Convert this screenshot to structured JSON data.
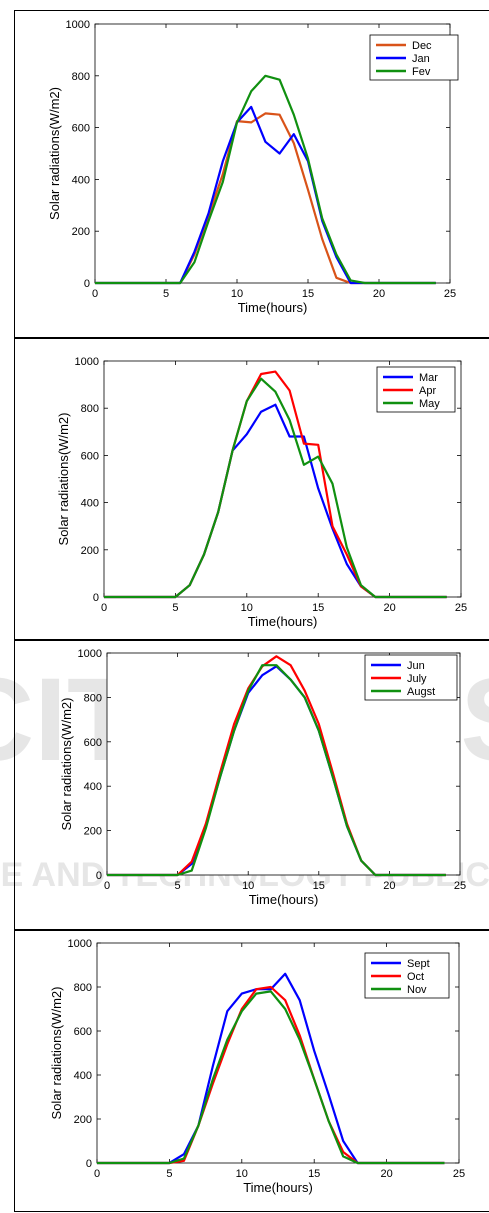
{
  "watermark": {
    "big": "SCITEPRESS",
    "small": "SCIENCE AND TECHNOLOGY PUBLICATIONS",
    "color": "#e6e6e6"
  },
  "chart_data": [
    {
      "type": "line",
      "xlabel": "Time(hours)",
      "ylabel": "Solar radiations(W/m2)",
      "xlim": [
        0,
        25
      ],
      "ylim": [
        0,
        1000
      ],
      "xticks": [
        0,
        5,
        10,
        15,
        20,
        25
      ],
      "yticks": [
        0,
        200,
        400,
        600,
        800,
        1000
      ],
      "legend": "top-right",
      "x": [
        0,
        1,
        2,
        3,
        4,
        5,
        6,
        7,
        8,
        9,
        10,
        11,
        12,
        13,
        14,
        15,
        16,
        17,
        18,
        19,
        20,
        21,
        22,
        23,
        24
      ],
      "series": [
        {
          "name": "Dec",
          "color": "#d95319",
          "values": [
            0,
            0,
            0,
            0,
            0,
            0,
            0,
            110,
            260,
            420,
            625,
            620,
            655,
            650,
            540,
            360,
            170,
            20,
            0,
            0,
            0,
            0,
            0,
            0,
            0
          ]
        },
        {
          "name": "Jan",
          "color": "#0000ff",
          "values": [
            0,
            0,
            0,
            0,
            0,
            0,
            0,
            120,
            270,
            470,
            620,
            680,
            545,
            500,
            575,
            470,
            240,
            100,
            0,
            0,
            0,
            0,
            0,
            0,
            0
          ]
        },
        {
          "name": "Fev",
          "color": "#109010",
          "values": [
            0,
            0,
            0,
            0,
            0,
            0,
            0,
            80,
            240,
            390,
            620,
            740,
            800,
            785,
            650,
            480,
            250,
            110,
            10,
            0,
            0,
            0,
            0,
            0,
            0
          ]
        }
      ]
    },
    {
      "type": "line",
      "xlabel": "Time(hours)",
      "ylabel": "Solar radiations(W/m2)",
      "xlim": [
        0,
        25
      ],
      "ylim": [
        0,
        1000
      ],
      "xticks": [
        0,
        5,
        10,
        15,
        20,
        25
      ],
      "yticks": [
        0,
        200,
        400,
        600,
        800,
        1000
      ],
      "legend": "top-right",
      "x": [
        0,
        1,
        2,
        3,
        4,
        5,
        6,
        7,
        8,
        9,
        10,
        11,
        12,
        13,
        14,
        15,
        16,
        17,
        18,
        19,
        20,
        21,
        22,
        23,
        24
      ],
      "series": [
        {
          "name": "Mar",
          "color": "#0000ff",
          "values": [
            0,
            0,
            0,
            0,
            0,
            0,
            50,
            180,
            360,
            620,
            690,
            785,
            815,
            680,
            680,
            460,
            290,
            140,
            45,
            0,
            0,
            0,
            0,
            0,
            0
          ]
        },
        {
          "name": "Apr",
          "color": "#ff0000",
          "values": [
            0,
            0,
            0,
            0,
            0,
            0,
            50,
            180,
            360,
            620,
            830,
            945,
            955,
            875,
            650,
            645,
            300,
            180,
            45,
            0,
            0,
            0,
            0,
            0,
            0
          ]
        },
        {
          "name": "May",
          "color": "#109010",
          "values": [
            0,
            0,
            0,
            0,
            0,
            0,
            50,
            180,
            360,
            620,
            830,
            925,
            870,
            750,
            560,
            595,
            480,
            210,
            50,
            0,
            0,
            0,
            0,
            0,
            0
          ]
        }
      ]
    },
    {
      "type": "line",
      "xlabel": "Time(hours)",
      "ylabel": "Solar radiations(W/m2)",
      "xlim": [
        0,
        25
      ],
      "ylim": [
        0,
        1000
      ],
      "xticks": [
        0,
        5,
        10,
        15,
        20,
        25
      ],
      "yticks": [
        0,
        200,
        400,
        600,
        800,
        1000
      ],
      "legend": "top-right",
      "x": [
        0,
        1,
        2,
        3,
        4,
        5,
        6,
        7,
        8,
        9,
        10,
        11,
        12,
        13,
        14,
        15,
        16,
        17,
        18,
        19,
        20,
        21,
        22,
        23,
        24
      ],
      "series": [
        {
          "name": "Jun",
          "color": "#0000ff",
          "values": [
            0,
            0,
            0,
            0,
            0,
            0,
            50,
            220,
            440,
            650,
            820,
            900,
            940,
            880,
            800,
            650,
            440,
            220,
            65,
            0,
            0,
            0,
            0,
            0,
            0
          ]
        },
        {
          "name": "July",
          "color": "#ff0000",
          "values": [
            0,
            0,
            0,
            0,
            0,
            0,
            60,
            230,
            460,
            680,
            840,
            940,
            985,
            945,
            830,
            680,
            460,
            230,
            65,
            0,
            0,
            0,
            0,
            0,
            0
          ]
        },
        {
          "name": "Augst",
          "color": "#109010",
          "values": [
            0,
            0,
            0,
            0,
            0,
            0,
            20,
            210,
            440,
            650,
            830,
            945,
            945,
            880,
            800,
            650,
            440,
            220,
            65,
            0,
            0,
            0,
            0,
            0,
            0
          ]
        }
      ]
    },
    {
      "type": "line",
      "xlabel": "Time(hours)",
      "ylabel": "Solar radiations(W/m2)",
      "xlim": [
        0,
        25
      ],
      "ylim": [
        0,
        1000
      ],
      "xticks": [
        0,
        5,
        10,
        15,
        20,
        25
      ],
      "yticks": [
        0,
        200,
        400,
        600,
        800,
        1000
      ],
      "legend": "top-right",
      "x": [
        0,
        1,
        2,
        3,
        4,
        5,
        6,
        7,
        8,
        9,
        10,
        11,
        12,
        13,
        14,
        15,
        16,
        17,
        18,
        19,
        20,
        21,
        22,
        23,
        24
      ],
      "series": [
        {
          "name": "Sept",
          "color": "#0000ff",
          "values": [
            0,
            0,
            0,
            0,
            0,
            0,
            40,
            170,
            440,
            690,
            770,
            790,
            790,
            860,
            740,
            510,
            310,
            100,
            0,
            0,
            0,
            0,
            0,
            0,
            0
          ]
        },
        {
          "name": "Oct",
          "color": "#ff0000",
          "values": [
            0,
            0,
            0,
            0,
            0,
            0,
            10,
            170,
            360,
            540,
            700,
            790,
            800,
            740,
            580,
            380,
            190,
            50,
            0,
            0,
            0,
            0,
            0,
            0,
            0
          ]
        },
        {
          "name": "Nov",
          "color": "#109010",
          "values": [
            0,
            0,
            0,
            0,
            0,
            0,
            20,
            170,
            380,
            560,
            690,
            770,
            780,
            700,
            560,
            380,
            190,
            30,
            0,
            0,
            0,
            0,
            0,
            0,
            0
          ]
        }
      ]
    }
  ]
}
